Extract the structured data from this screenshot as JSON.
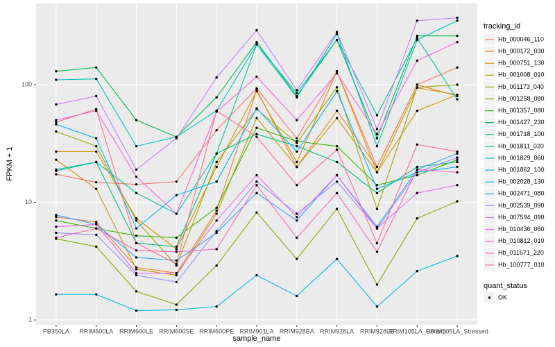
{
  "chart_data": {
    "type": "line",
    "x_label": "sample_name",
    "y_label": "FPKM + 1",
    "categories": [
      "PB350LA",
      "RRIM600LA",
      "RRIM600LE",
      "RRIM600SE",
      "RRIM600PE",
      "RRIM901LA",
      "RRIM928BA",
      "RRIM928LA",
      "RRIM928LE",
      "RRIM105LA_Control",
      "RRIM105LA_Stressed"
    ],
    "log_y": true,
    "ylim": [
      0.91,
      490
    ],
    "yticks": [
      1,
      10,
      100
    ],
    "grid": true,
    "legend_title": "tracking_id",
    "legend_position": "right",
    "point_legend_title": "quant_status",
    "point_legend_label": "OK",
    "point_color": "#000000",
    "series": [
      {
        "name": "Hb_000046_110",
        "color": "#F8766D",
        "values": [
          17.3,
          14.8,
          14.2,
          15,
          41,
          93,
          35,
          130,
          20,
          100,
          140
        ]
      },
      {
        "name": "Hb_000172_030",
        "color": "#EA8331",
        "values": [
          7.5,
          6.8,
          2.8,
          2.5,
          8.5,
          90,
          20,
          60,
          20,
          100,
          80
        ]
      },
      {
        "name": "Hb_000751_130",
        "color": "#D89000",
        "values": [
          27,
          27,
          7.3,
          4,
          20,
          88,
          22,
          130,
          18,
          60,
          82
        ]
      },
      {
        "name": "Hb_001008_010",
        "color": "#C09B00",
        "values": [
          23,
          13,
          2.7,
          2.4,
          8,
          52,
          20,
          52,
          18,
          94,
          82
        ]
      },
      {
        "name": "Hb_001173_040",
        "color": "#A3A500",
        "values": [
          40,
          30,
          7,
          2.9,
          22,
          62,
          32,
          95,
          8.8,
          95,
          100
        ]
      },
      {
        "name": "Hb_001258_080",
        "color": "#7CAE00",
        "values": [
          4.9,
          4.2,
          1.75,
          1.35,
          2.9,
          8.2,
          3.3,
          8.8,
          2,
          7.3,
          10.2
        ]
      },
      {
        "name": "Hb_001357_080",
        "color": "#39B600",
        "values": [
          7,
          6,
          5.2,
          5,
          9,
          43,
          33,
          30,
          14,
          17,
          23
        ]
      },
      {
        "name": "Hb_001427_230",
        "color": "#00BB4E",
        "values": [
          130,
          140,
          50,
          36,
          78,
          230,
          80,
          240,
          35,
          260,
          260
        ]
      },
      {
        "name": "Hb_001718_100",
        "color": "#00BF7D",
        "values": [
          18.5,
          22,
          4.5,
          4.2,
          26,
          38,
          30,
          22,
          12,
          20,
          22
        ]
      },
      {
        "name": "Hb_001811_020",
        "color": "#00C1A3",
        "values": [
          19,
          22,
          12,
          8,
          26,
          220,
          85,
          240,
          55,
          250,
          75
        ]
      },
      {
        "name": "Hb_001829_060",
        "color": "#00BFC4",
        "values": [
          110,
          112,
          30,
          36,
          60,
          220,
          78,
          270,
          30,
          240,
          350
        ]
      },
      {
        "name": "Hb_001862_100",
        "color": "#00BAE0",
        "values": [
          1.65,
          1.65,
          1.2,
          1.22,
          1.3,
          2.4,
          1.6,
          3.3,
          1.3,
          2.6,
          3.5
        ]
      },
      {
        "name": "Hb_002028_130",
        "color": "#00B0F6",
        "values": [
          46,
          35,
          6,
          11.5,
          15,
          63,
          27,
          88,
          13,
          18,
          20
        ]
      },
      {
        "name": "Hb_002471_080",
        "color": "#35A2FF",
        "values": [
          7.8,
          6.5,
          3.4,
          3.2,
          5.5,
          12,
          7,
          17,
          6.2,
          19,
          26
        ]
      },
      {
        "name": "Hb_002539_090",
        "color": "#9590FF",
        "values": [
          5.5,
          5.3,
          2.4,
          2.1,
          5.7,
          15,
          8,
          15,
          6,
          18,
          24
        ]
      },
      {
        "name": "Hb_007594_090",
        "color": "#C77CFF",
        "values": [
          68,
          80,
          19,
          35,
          115,
          290,
          90,
          280,
          42,
          350,
          370
        ]
      },
      {
        "name": "Hb_010436_060",
        "color": "#E76BF3",
        "values": [
          6.2,
          6.5,
          2.5,
          2.5,
          7,
          17,
          7.5,
          17,
          6,
          12,
          14
        ]
      },
      {
        "name": "Hb_010812_010",
        "color": "#FA62DB",
        "values": [
          50,
          60,
          16.5,
          8,
          59,
          117,
          50,
          125,
          38,
          160,
          230
        ]
      },
      {
        "name": "Hb_011671_220",
        "color": "#FF62BC",
        "values": [
          5,
          6,
          3.9,
          3.8,
          4,
          14,
          5,
          12,
          3.8,
          19,
          18
        ]
      },
      {
        "name": "Hb_100777_010",
        "color": "#FF6C91",
        "values": [
          48,
          62,
          4.5,
          3,
          60,
          36,
          14,
          28,
          4.5,
          31,
          27
        ]
      }
    ]
  }
}
